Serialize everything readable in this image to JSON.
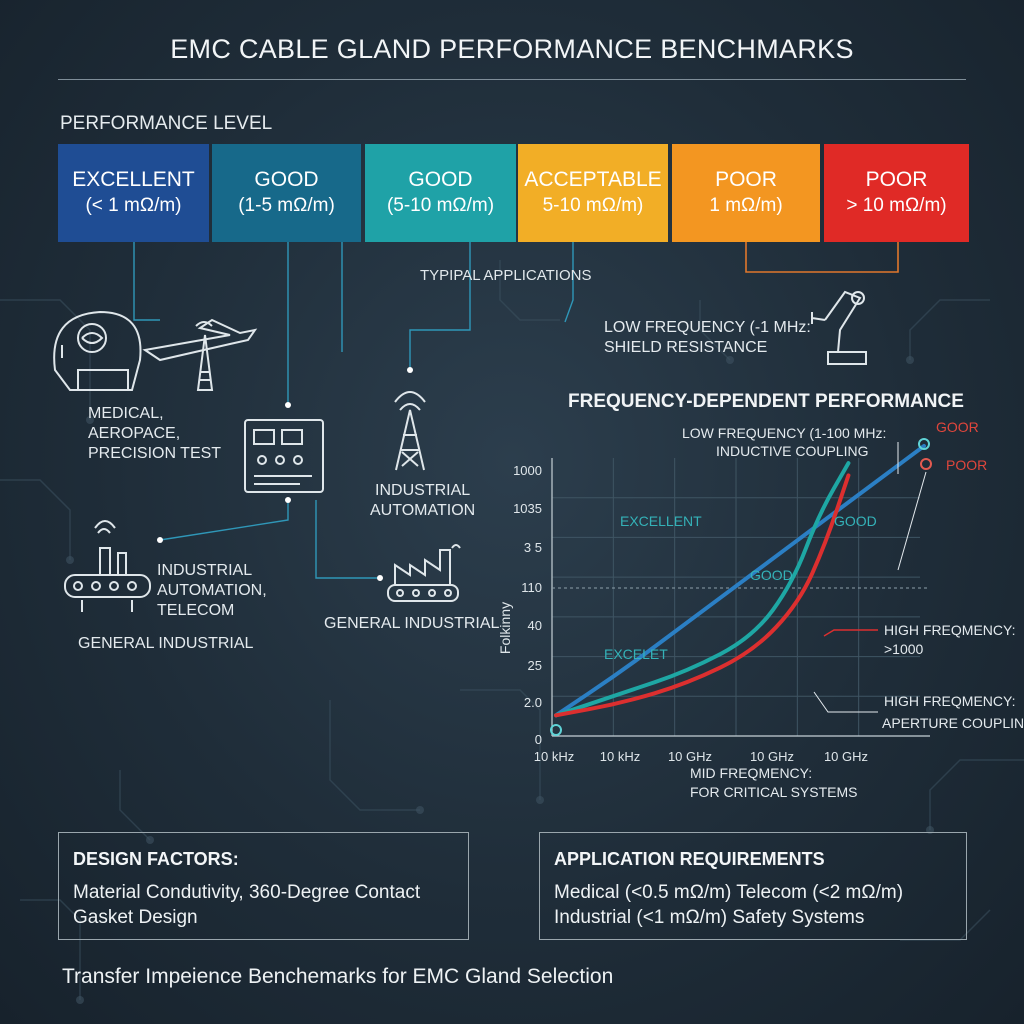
{
  "title": "EMC CABLE GLAND PERFORMANCE BENCHMARKS",
  "performance_label": "PERFORMANCE LEVEL",
  "levels": [
    {
      "name": "EXCELLENT",
      "range": "(< 1 mΩ/m)",
      "color": "#1f4d94"
    },
    {
      "name": "GOOD",
      "range": "(1-5 mΩ/m)",
      "color": "#17698a"
    },
    {
      "name": "GOOD",
      "range": "(5-10 mΩ/m)",
      "color": "#1fa2a7"
    },
    {
      "name": "ACCEPTABLE",
      "range": "5-10 mΩ/m)",
      "color": "#f2ae26"
    },
    {
      "name": "POOR",
      "range": "1 mΩ/m)",
      "color": "#f39621"
    },
    {
      "name": "POOR",
      "range": "> 10 mΩ/m)",
      "color": "#e02a26"
    }
  ],
  "typical_applications": "TYPIPAL APPLICATIONS",
  "low_freq_note": [
    "LOW FREQUENCY (-1 MHz:",
    "SHIELD RESISTANCE"
  ],
  "applications": {
    "medical": [
      "MEDICAL,",
      "AEROPACE,",
      "PRECISION TEST"
    ],
    "industrial_automation": [
      "INDUSTRIAL",
      "AUTOMATION"
    ],
    "automation_telecom": [
      "INDUSTRIAL",
      "AUTOMATION,",
      "TELECOM"
    ],
    "general_industrial_left": "GENERAL INDUSTRIAL",
    "general_industrial_mid": "GENERAL INDUSTRIAL"
  },
  "icons": [
    "brain-scanner-icon",
    "aircraft-icon",
    "control-panel-icon",
    "radio-tower-icon",
    "robot-arm-icon",
    "conveyor-icon",
    "factory-icon"
  ],
  "chart_data": {
    "type": "line",
    "title": "FREQUENCY-DEPENDENT PERFORMANCE",
    "ylabel": "Folkinny",
    "x_ticks": [
      "10 kHz",
      "10 kHz",
      "10 GHz",
      "10 GHz",
      "10 GHz"
    ],
    "y_ticks": [
      "1000",
      "1035",
      "3 5",
      "110",
      "40",
      "25",
      "2.0",
      "0"
    ],
    "series": [
      {
        "color": "#2b7fc4",
        "points": [
          [
            0,
            0.3
          ],
          [
            1,
            1.2
          ],
          [
            2,
            2.2
          ],
          [
            3,
            3.2
          ],
          [
            4,
            4.2
          ],
          [
            5,
            5.2
          ],
          [
            5.6,
            5.8
          ]
        ]
      },
      {
        "color": "#1ea7a4",
        "points": [
          [
            0,
            0.3
          ],
          [
            1,
            0.75
          ],
          [
            2,
            1.2
          ],
          [
            3,
            1.9
          ],
          [
            3.6,
            3
          ],
          [
            4,
            4.4
          ],
          [
            4.45,
            5.45
          ]
        ]
      },
      {
        "color": "#dc2f2f",
        "points": [
          [
            0,
            0.3
          ],
          [
            1,
            0.55
          ],
          [
            2,
            0.95
          ],
          [
            3,
            1.6
          ],
          [
            3.7,
            2.6
          ],
          [
            4.1,
            3.8
          ],
          [
            4.45,
            5.2
          ]
        ]
      }
    ],
    "inline_labels": [
      {
        "text": "EXCELLENT",
        "color": "#34b2b8"
      },
      {
        "text": "GOOD",
        "color": "#34b2b8"
      },
      {
        "text": "GOOD",
        "color": "#34b2b8"
      },
      {
        "text": "EXCELET",
        "color": "#34b2b8"
      },
      {
        "text": "GOOR",
        "color": "#e0463c"
      },
      {
        "text": "POOR",
        "color": "#e0463c"
      }
    ],
    "annotations": [
      {
        "lines": [
          "LOW FREQUENCY (1-100 MHz:",
          "INDUCTIVE COUPLING"
        ]
      },
      {
        "lines": [
          "HIGH FREQMENCY:",
          ">1000"
        ]
      },
      {
        "lines": [
          "HIGH FREQMENCY:",
          "APERTURE COUPLING"
        ]
      },
      {
        "lines": [
          "MID FREQMENCY:",
          "FOR CRITICAL SYSTEMS"
        ]
      }
    ]
  },
  "design_factors": {
    "heading": "DESIGN FACTORS:",
    "lines": [
      "Material Condutivity, 360-Degree Contact",
      "Gasket Design"
    ]
  },
  "app_requirements": {
    "heading": "APPLICATION REQUIREMENTS",
    "lines": [
      "Medical (<0.5 mΩ/m) Telecom (<2 mΩ/m)",
      "Industrial (<1 mΩ/m) Safety Systems"
    ]
  },
  "footer": "Transfer Impeience Benchemarks for EMC Gland Selection"
}
